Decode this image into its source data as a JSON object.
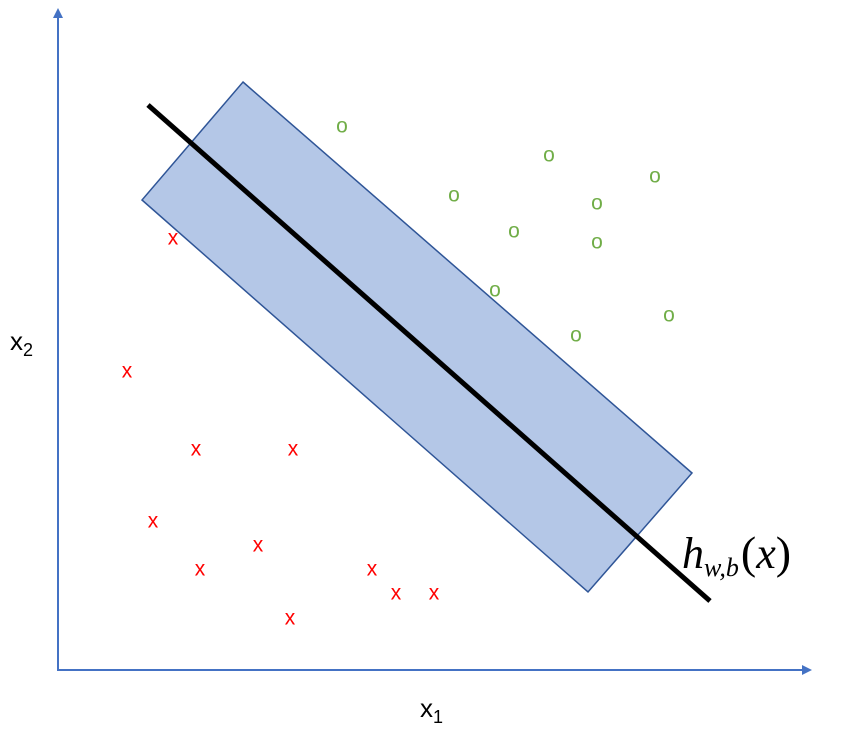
{
  "diagram": {
    "x_axis_label": "x",
    "x_axis_subscript": "1",
    "y_axis_label": "x",
    "y_axis_subscript": "2",
    "hyperplane_label": {
      "main": "h",
      "subscript": "w,b",
      "open_paren": "(",
      "argument": "x",
      "close_paren": ")"
    },
    "classes": {
      "negative": {
        "marker": "x",
        "color": "#ff0000"
      },
      "positive": {
        "marker": "o",
        "color": "#70ad47"
      }
    },
    "colors": {
      "axis": "#4472c4",
      "margin_fill": "#b4c7e7",
      "margin_stroke": "#2f5597",
      "hyperplane": "#000000"
    }
  }
}
